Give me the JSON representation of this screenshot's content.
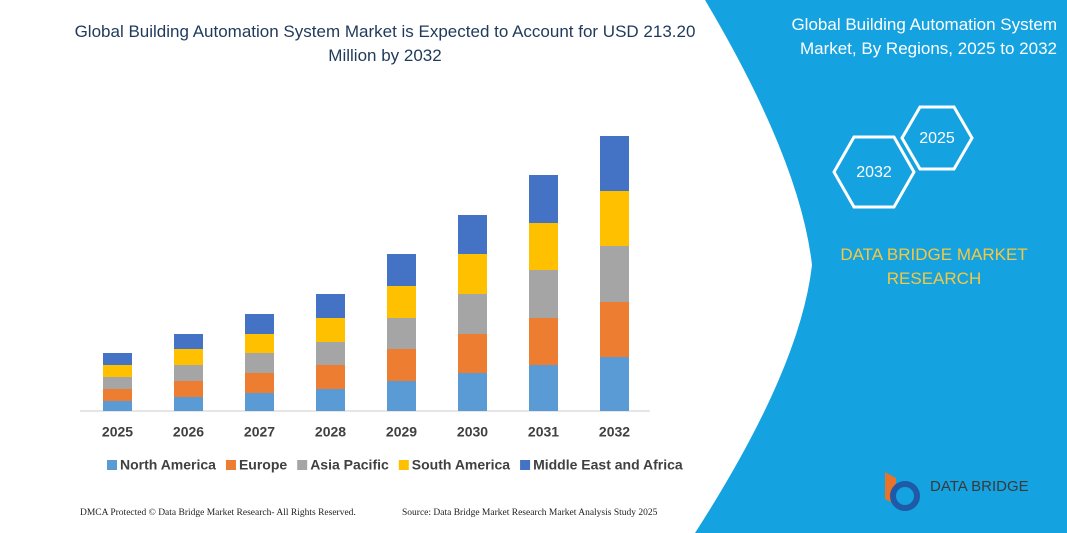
{
  "chart_data": {
    "type": "stacked-bar",
    "title": "Global Building Automation System Market is Expected to Account for USD 213.20 Million by 2032",
    "categories": [
      "2025",
      "2026",
      "2027",
      "2028",
      "2029",
      "2030",
      "2031",
      "2032"
    ],
    "series": [
      {
        "name": "North America",
        "color": "#5b9bd5",
        "values": [
          10,
          14,
          18,
          22,
          30,
          38,
          46,
          54
        ]
      },
      {
        "name": "Europe",
        "color": "#ed7d31",
        "values": [
          12,
          16,
          20,
          24,
          32,
          39,
          47,
          55
        ]
      },
      {
        "name": "Asia Pacific",
        "color": "#a5a5a5",
        "values": [
          12,
          16,
          20,
          23,
          31,
          40,
          48,
          56
        ]
      },
      {
        "name": "South America",
        "color": "#ffc000",
        "values": [
          12,
          16,
          19,
          24,
          32,
          40,
          47,
          55
        ]
      },
      {
        "name": "Middle East and Africa",
        "color": "#4472c4",
        "values": [
          12,
          15,
          20,
          24,
          32,
          39,
          48,
          55
        ]
      }
    ]
  },
  "side_panel": {
    "title": "Global Building Automation System Market, By Regions, 2025 to 2032",
    "hex_labels": [
      "2025",
      "2032"
    ],
    "brand": "DATA BRIDGE MARKET RESEARCH"
  },
  "logo": {
    "text": "DATA BRIDGE"
  },
  "footer": {
    "left": "DMCA Protected © Data Bridge Market Research- All Rights Reserved.",
    "right": "Source: Data Bridge Market Research Market Analysis Study 2025"
  }
}
